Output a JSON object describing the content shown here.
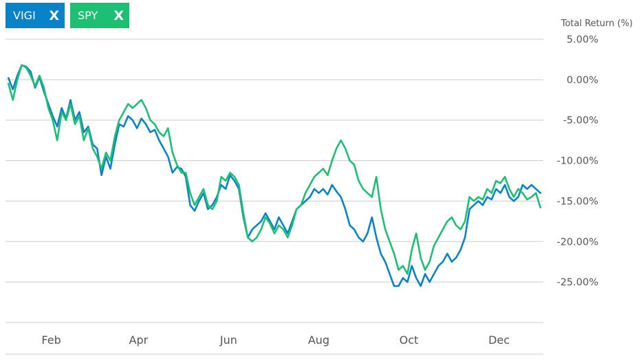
{
  "chips": [
    {
      "label": "VIGI",
      "close": "X",
      "color": "#0a82c8"
    },
    {
      "label": "SPY",
      "close": "X",
      "color": "#1dbf73"
    }
  ],
  "chart_data": {
    "type": "line",
    "ylabel": "Total Return (%)",
    "ylim": [
      -30,
      5
    ],
    "yticks": [
      5,
      0,
      -5,
      -10,
      -15,
      -20,
      -25
    ],
    "ytick_labels": [
      "5.00%",
      "0.00%",
      "-5.00%",
      "-10.00%",
      "-15.00%",
      "-20.00%",
      "-25.00%"
    ],
    "xlim": [
      "2022-01-01",
      "2022-12-31"
    ],
    "xticks": [
      "2022-02-01",
      "2022-04-01",
      "2022-06-01",
      "2022-08-01",
      "2022-10-01",
      "2022-12-01"
    ],
    "xtick_labels": [
      "Feb",
      "Apr",
      "Jun",
      "Aug",
      "Oct",
      "Dec"
    ],
    "grid": true,
    "series": [
      {
        "name": "VIGI",
        "color": "#0a82c8",
        "points": [
          [
            "2022-01-03",
            0.2
          ],
          [
            "2022-01-06",
            -1.2
          ],
          [
            "2022-01-09",
            0.5
          ],
          [
            "2022-01-12",
            1.8
          ],
          [
            "2022-01-15",
            1.6
          ],
          [
            "2022-01-18",
            1.0
          ],
          [
            "2022-01-21",
            -1.0
          ],
          [
            "2022-01-24",
            0.3
          ],
          [
            "2022-01-27",
            -1.5
          ],
          [
            "2022-01-30",
            -3.0
          ],
          [
            "2022-02-02",
            -4.5
          ],
          [
            "2022-02-05",
            -5.8
          ],
          [
            "2022-02-08",
            -3.5
          ],
          [
            "2022-02-11",
            -4.8
          ],
          [
            "2022-02-14",
            -2.5
          ],
          [
            "2022-02-17",
            -5.0
          ],
          [
            "2022-02-20",
            -4.0
          ],
          [
            "2022-02-23",
            -6.5
          ],
          [
            "2022-02-26",
            -5.8
          ],
          [
            "2022-03-01",
            -8.0
          ],
          [
            "2022-03-04",
            -8.5
          ],
          [
            "2022-03-07",
            -11.8
          ],
          [
            "2022-03-10",
            -9.5
          ],
          [
            "2022-03-13",
            -11.0
          ],
          [
            "2022-03-16",
            -8.0
          ],
          [
            "2022-03-19",
            -5.5
          ],
          [
            "2022-03-22",
            -5.8
          ],
          [
            "2022-03-25",
            -4.5
          ],
          [
            "2022-03-28",
            -5.0
          ],
          [
            "2022-03-31",
            -6.0
          ],
          [
            "2022-04-03",
            -4.8
          ],
          [
            "2022-04-06",
            -5.5
          ],
          [
            "2022-04-09",
            -6.5
          ],
          [
            "2022-04-12",
            -6.2
          ],
          [
            "2022-04-15",
            -7.5
          ],
          [
            "2022-04-18",
            -8.5
          ],
          [
            "2022-04-21",
            -9.5
          ],
          [
            "2022-04-24",
            -11.5
          ],
          [
            "2022-04-27",
            -10.8
          ],
          [
            "2022-04-30",
            -11.0
          ],
          [
            "2022-05-03",
            -12.0
          ],
          [
            "2022-05-06",
            -15.5
          ],
          [
            "2022-05-09",
            -16.2
          ],
          [
            "2022-05-12",
            -15.0
          ],
          [
            "2022-05-15",
            -14.0
          ],
          [
            "2022-05-18",
            -16.0
          ],
          [
            "2022-05-21",
            -15.5
          ],
          [
            "2022-05-24",
            -14.5
          ],
          [
            "2022-05-27",
            -13.0
          ],
          [
            "2022-05-30",
            -13.5
          ],
          [
            "2022-06-02",
            -11.8
          ],
          [
            "2022-06-05",
            -12.5
          ],
          [
            "2022-06-08",
            -13.5
          ],
          [
            "2022-06-11",
            -17.0
          ],
          [
            "2022-06-14",
            -19.5
          ],
          [
            "2022-06-17",
            -18.5
          ],
          [
            "2022-06-20",
            -18.0
          ],
          [
            "2022-06-23",
            -17.5
          ],
          [
            "2022-06-26",
            -16.5
          ],
          [
            "2022-06-29",
            -17.5
          ],
          [
            "2022-07-02",
            -18.5
          ],
          [
            "2022-07-05",
            -17.0
          ],
          [
            "2022-07-08",
            -18.0
          ],
          [
            "2022-07-11",
            -19.0
          ],
          [
            "2022-07-14",
            -17.5
          ],
          [
            "2022-07-17",
            -16.0
          ],
          [
            "2022-07-20",
            -15.5
          ],
          [
            "2022-07-23",
            -15.0
          ],
          [
            "2022-07-26",
            -14.5
          ],
          [
            "2022-07-29",
            -13.5
          ],
          [
            "2022-08-01",
            -14.0
          ],
          [
            "2022-08-04",
            -13.5
          ],
          [
            "2022-08-07",
            -14.2
          ],
          [
            "2022-08-10",
            -13.0
          ],
          [
            "2022-08-13",
            -13.8
          ],
          [
            "2022-08-16",
            -14.5
          ],
          [
            "2022-08-19",
            -16.0
          ],
          [
            "2022-08-22",
            -18.0
          ],
          [
            "2022-08-25",
            -18.5
          ],
          [
            "2022-08-28",
            -19.5
          ],
          [
            "2022-08-31",
            -20.0
          ],
          [
            "2022-09-03",
            -19.0
          ],
          [
            "2022-09-06",
            -17.0
          ],
          [
            "2022-09-09",
            -19.5
          ],
          [
            "2022-09-12",
            -21.5
          ],
          [
            "2022-09-15",
            -22.5
          ],
          [
            "2022-09-18",
            -24.0
          ],
          [
            "2022-09-21",
            -25.5
          ],
          [
            "2022-09-24",
            -25.5
          ],
          [
            "2022-09-27",
            -24.5
          ],
          [
            "2022-09-30",
            -25.0
          ],
          [
            "2022-10-03",
            -23.0
          ],
          [
            "2022-10-06",
            -24.5
          ],
          [
            "2022-10-09",
            -25.5
          ],
          [
            "2022-10-12",
            -24.0
          ],
          [
            "2022-10-15",
            -25.0
          ],
          [
            "2022-10-18",
            -24.0
          ],
          [
            "2022-10-21",
            -23.0
          ],
          [
            "2022-10-24",
            -22.5
          ],
          [
            "2022-10-27",
            -21.5
          ],
          [
            "2022-10-30",
            -22.5
          ],
          [
            "2022-11-02",
            -22.0
          ],
          [
            "2022-11-05",
            -21.0
          ],
          [
            "2022-11-08",
            -19.5
          ],
          [
            "2022-11-11",
            -16.0
          ],
          [
            "2022-11-14",
            -15.5
          ],
          [
            "2022-11-17",
            -15.0
          ],
          [
            "2022-11-20",
            -15.5
          ],
          [
            "2022-11-23",
            -14.5
          ],
          [
            "2022-11-26",
            -14.8
          ],
          [
            "2022-11-29",
            -13.5
          ],
          [
            "2022-12-02",
            -14.0
          ],
          [
            "2022-12-05",
            -13.0
          ],
          [
            "2022-12-08",
            -14.5
          ],
          [
            "2022-12-11",
            -15.0
          ],
          [
            "2022-12-14",
            -14.5
          ],
          [
            "2022-12-17",
            -13.0
          ],
          [
            "2022-12-20",
            -13.5
          ],
          [
            "2022-12-23",
            -13.0
          ],
          [
            "2022-12-26",
            -13.5
          ],
          [
            "2022-12-29",
            -14.0
          ]
        ]
      },
      {
        "name": "SPY",
        "color": "#1dbf73",
        "points": [
          [
            "2022-01-03",
            -0.5
          ],
          [
            "2022-01-06",
            -2.5
          ],
          [
            "2022-01-09",
            0.0
          ],
          [
            "2022-01-12",
            1.8
          ],
          [
            "2022-01-15",
            1.5
          ],
          [
            "2022-01-18",
            0.5
          ],
          [
            "2022-01-21",
            -0.8
          ],
          [
            "2022-01-24",
            0.5
          ],
          [
            "2022-01-27",
            -1.0
          ],
          [
            "2022-01-30",
            -3.5
          ],
          [
            "2022-02-02",
            -5.0
          ],
          [
            "2022-02-05",
            -7.5
          ],
          [
            "2022-02-08",
            -4.0
          ],
          [
            "2022-02-11",
            -5.0
          ],
          [
            "2022-02-14",
            -3.0
          ],
          [
            "2022-02-17",
            -5.5
          ],
          [
            "2022-02-20",
            -4.5
          ],
          [
            "2022-02-23",
            -7.5
          ],
          [
            "2022-02-26",
            -6.0
          ],
          [
            "2022-03-01",
            -8.5
          ],
          [
            "2022-03-04",
            -9.5
          ],
          [
            "2022-03-07",
            -11.0
          ],
          [
            "2022-03-10",
            -9.0
          ],
          [
            "2022-03-13",
            -10.0
          ],
          [
            "2022-03-16",
            -7.0
          ],
          [
            "2022-03-19",
            -5.0
          ],
          [
            "2022-03-22",
            -4.0
          ],
          [
            "2022-03-25",
            -3.0
          ],
          [
            "2022-03-28",
            -3.5
          ],
          [
            "2022-03-31",
            -3.0
          ],
          [
            "2022-04-03",
            -2.5
          ],
          [
            "2022-04-06",
            -3.5
          ],
          [
            "2022-04-09",
            -5.0
          ],
          [
            "2022-04-12",
            -5.5
          ],
          [
            "2022-04-15",
            -6.5
          ],
          [
            "2022-04-18",
            -7.0
          ],
          [
            "2022-04-21",
            -6.0
          ],
          [
            "2022-04-24",
            -9.0
          ],
          [
            "2022-04-27",
            -10.5
          ],
          [
            "2022-04-30",
            -11.5
          ],
          [
            "2022-05-03",
            -11.5
          ],
          [
            "2022-05-06",
            -14.0
          ],
          [
            "2022-05-09",
            -15.5
          ],
          [
            "2022-05-12",
            -14.5
          ],
          [
            "2022-05-15",
            -13.5
          ],
          [
            "2022-05-18",
            -15.5
          ],
          [
            "2022-05-21",
            -16.0
          ],
          [
            "2022-05-24",
            -15.0
          ],
          [
            "2022-05-27",
            -12.0
          ],
          [
            "2022-05-30",
            -12.5
          ],
          [
            "2022-06-02",
            -11.5
          ],
          [
            "2022-06-05",
            -12.0
          ],
          [
            "2022-06-08",
            -13.0
          ],
          [
            "2022-06-11",
            -16.5
          ],
          [
            "2022-06-14",
            -19.5
          ],
          [
            "2022-06-17",
            -20.0
          ],
          [
            "2022-06-20",
            -19.5
          ],
          [
            "2022-06-23",
            -18.5
          ],
          [
            "2022-06-26",
            -17.0
          ],
          [
            "2022-06-29",
            -17.8
          ],
          [
            "2022-07-02",
            -19.0
          ],
          [
            "2022-07-05",
            -18.0
          ],
          [
            "2022-07-08",
            -18.5
          ],
          [
            "2022-07-11",
            -19.5
          ],
          [
            "2022-07-14",
            -18.0
          ],
          [
            "2022-07-17",
            -16.0
          ],
          [
            "2022-07-20",
            -15.5
          ],
          [
            "2022-07-23",
            -14.0
          ],
          [
            "2022-07-26",
            -13.0
          ],
          [
            "2022-07-29",
            -12.0
          ],
          [
            "2022-08-01",
            -11.5
          ],
          [
            "2022-08-04",
            -11.0
          ],
          [
            "2022-08-07",
            -11.8
          ],
          [
            "2022-08-10",
            -10.0
          ],
          [
            "2022-08-13",
            -8.5
          ],
          [
            "2022-08-16",
            -7.5
          ],
          [
            "2022-08-19",
            -8.5
          ],
          [
            "2022-08-22",
            -10.0
          ],
          [
            "2022-08-25",
            -10.5
          ],
          [
            "2022-08-28",
            -12.5
          ],
          [
            "2022-08-31",
            -13.5
          ],
          [
            "2022-09-03",
            -14.0
          ],
          [
            "2022-09-06",
            -14.5
          ],
          [
            "2022-09-09",
            -12.0
          ],
          [
            "2022-09-12",
            -16.0
          ],
          [
            "2022-09-15",
            -18.5
          ],
          [
            "2022-09-18",
            -20.0
          ],
          [
            "2022-09-21",
            -21.5
          ],
          [
            "2022-09-24",
            -23.5
          ],
          [
            "2022-09-27",
            -23.0
          ],
          [
            "2022-09-30",
            -24.0
          ],
          [
            "2022-10-03",
            -21.0
          ],
          [
            "2022-10-06",
            -19.0
          ],
          [
            "2022-10-09",
            -22.0
          ],
          [
            "2022-10-12",
            -23.5
          ],
          [
            "2022-10-15",
            -22.5
          ],
          [
            "2022-10-18",
            -20.5
          ],
          [
            "2022-10-21",
            -19.5
          ],
          [
            "2022-10-24",
            -18.5
          ],
          [
            "2022-10-27",
            -17.5
          ],
          [
            "2022-10-30",
            -17.0
          ],
          [
            "2022-11-02",
            -18.0
          ],
          [
            "2022-11-05",
            -18.5
          ],
          [
            "2022-11-08",
            -17.5
          ],
          [
            "2022-11-11",
            -14.5
          ],
          [
            "2022-11-14",
            -15.0
          ],
          [
            "2022-11-17",
            -14.5
          ],
          [
            "2022-11-20",
            -14.8
          ],
          [
            "2022-11-23",
            -13.5
          ],
          [
            "2022-11-26",
            -14.0
          ],
          [
            "2022-11-29",
            -12.5
          ],
          [
            "2022-12-02",
            -12.8
          ],
          [
            "2022-12-05",
            -12.0
          ],
          [
            "2022-12-08",
            -13.5
          ],
          [
            "2022-12-11",
            -14.5
          ],
          [
            "2022-12-14",
            -13.5
          ],
          [
            "2022-12-17",
            -14.0
          ],
          [
            "2022-12-20",
            -14.8
          ],
          [
            "2022-12-23",
            -14.5
          ],
          [
            "2022-12-26",
            -14.0
          ],
          [
            "2022-12-29",
            -15.8
          ]
        ]
      }
    ]
  }
}
